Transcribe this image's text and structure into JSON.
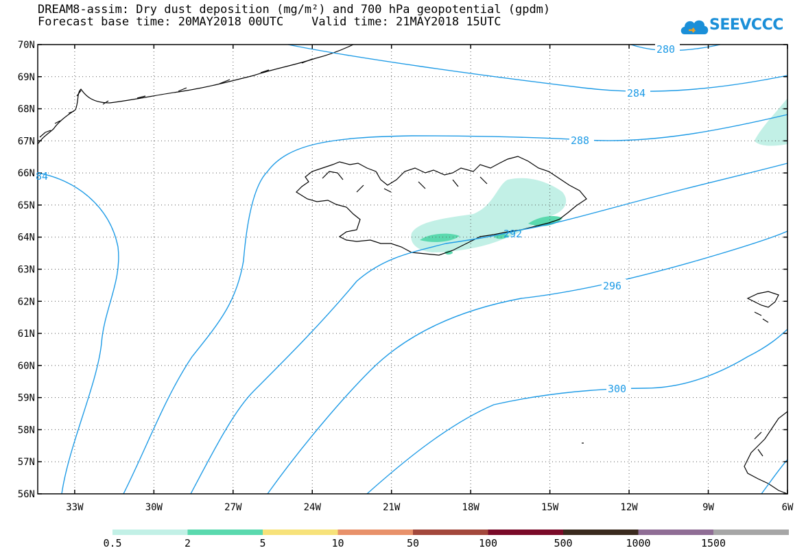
{
  "header": {
    "title_line1": "DREAM8-assim: Dry dust deposition (mg/m²) and 700 hPa geopotential (gpdm)",
    "title_line2": "Forecast base time: 20MAY2018 00UTC    Valid time: 21MAY2018 15UTC"
  },
  "logo": {
    "text": "SEEVCCC",
    "icon": "cloud-icon"
  },
  "map": {
    "lat_labels": [
      "70N",
      "69N",
      "68N",
      "67N",
      "66N",
      "65N",
      "64N",
      "63N",
      "62N",
      "61N",
      "60N",
      "59N",
      "58N",
      "57N",
      "56N"
    ],
    "lon_labels": [
      "33W",
      "30W",
      "27W",
      "24W",
      "21W",
      "18W",
      "15W",
      "12W",
      "9W",
      "6W"
    ],
    "contour_labels": [
      "280",
      "284",
      "288",
      "292",
      "296",
      "300",
      "84"
    ],
    "contour_color": "#1e9be6",
    "land_outline_color": "#000000"
  },
  "legend": {
    "labels": [
      "0.5",
      "2",
      "5",
      "10",
      "50",
      "100",
      "500",
      "1000",
      "1500"
    ],
    "colors": [
      "#c2f0e6",
      "#5ad9ae",
      "#f7e27a",
      "#e8916a",
      "#a3483c",
      "#7a0a28",
      "#3a2a1e",
      "#8f6d95",
      "#a6a6a6"
    ]
  }
}
